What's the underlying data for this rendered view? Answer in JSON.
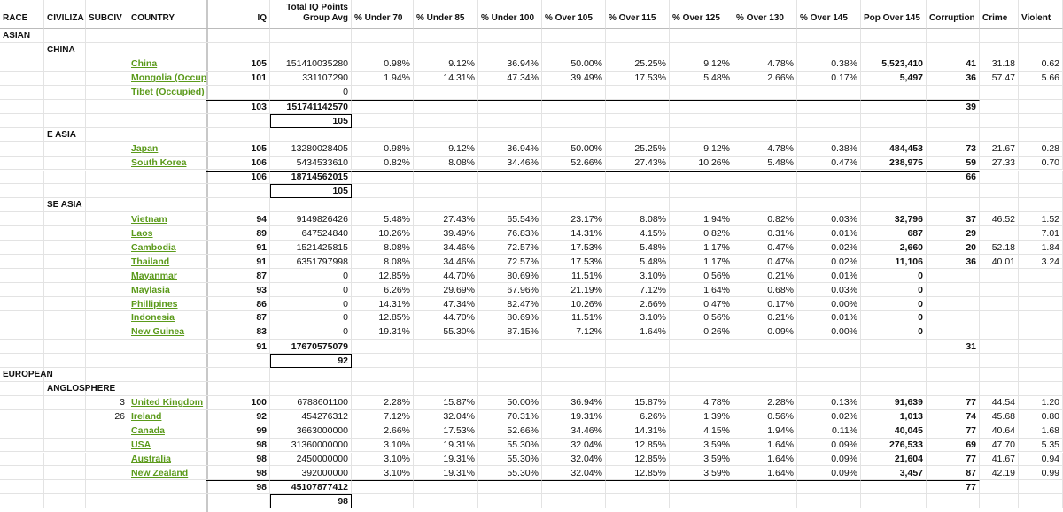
{
  "table": {
    "header": [
      "RACE",
      "CIVILIZA",
      "SUBCIV",
      "COUNTRY",
      "IQ",
      "Total IQ Points Group Avg",
      "% Under 70",
      "% Under 85",
      "% Under 100",
      "% Over 105",
      "% Over 115",
      "% Over 125",
      "% Over 130",
      "% Over 145",
      "Pop Over 145",
      "Corruption",
      "Crime",
      "Violent"
    ],
    "rows": [
      [
        "ASIAN",
        null,
        null,
        null,
        null,
        null,
        null,
        null,
        null,
        null,
        null,
        null,
        null,
        null,
        null,
        null,
        null,
        null
      ],
      [
        null,
        "CHINA",
        null,
        null,
        null,
        null,
        null,
        null,
        null,
        null,
        null,
        null,
        null,
        null,
        null,
        null,
        null,
        null
      ],
      [
        null,
        null,
        null,
        "China",
        "105",
        "151410035280",
        "0.98%",
        "9.12%",
        "36.94%",
        "50.00%",
        "25.25%",
        "9.12%",
        "4.78%",
        "0.38%",
        "5,523,410",
        "41",
        "31.18",
        "0.62"
      ],
      [
        null,
        null,
        null,
        "Mongolia (Occup",
        "101",
        "331107290",
        "1.94%",
        "14.31%",
        "47.34%",
        "39.49%",
        "17.53%",
        "5.48%",
        "2.66%",
        "0.17%",
        "5,497",
        "36",
        "57.47",
        "5.66"
      ],
      [
        null,
        null,
        null,
        "Tibet (Occupied)",
        null,
        "0",
        null,
        null,
        null,
        null,
        null,
        null,
        null,
        null,
        null,
        null,
        null,
        null
      ],
      [
        null,
        null,
        null,
        null,
        "103",
        "151741142570",
        null,
        null,
        null,
        null,
        null,
        null,
        null,
        null,
        null,
        "39",
        null,
        null
      ],
      [
        null,
        null,
        null,
        null,
        null,
        "105",
        null,
        null,
        null,
        null,
        null,
        null,
        null,
        null,
        null,
        null,
        null,
        null
      ],
      [
        null,
        "E ASIA",
        null,
        null,
        null,
        null,
        null,
        null,
        null,
        null,
        null,
        null,
        null,
        null,
        null,
        null,
        null,
        null
      ],
      [
        null,
        null,
        null,
        "Japan",
        "105",
        "13280028405",
        "0.98%",
        "9.12%",
        "36.94%",
        "50.00%",
        "25.25%",
        "9.12%",
        "4.78%",
        "0.38%",
        "484,453",
        "73",
        "21.67",
        "0.28"
      ],
      [
        null,
        null,
        null,
        "South Korea",
        "106",
        "5434533610",
        "0.82%",
        "8.08%",
        "34.46%",
        "52.66%",
        "27.43%",
        "10.26%",
        "5.48%",
        "0.47%",
        "238,975",
        "59",
        "27.33",
        "0.70"
      ],
      [
        null,
        null,
        null,
        null,
        "106",
        "18714562015",
        null,
        null,
        null,
        null,
        null,
        null,
        null,
        null,
        null,
        "66",
        null,
        null
      ],
      [
        null,
        null,
        null,
        null,
        null,
        "105",
        null,
        null,
        null,
        null,
        null,
        null,
        null,
        null,
        null,
        null,
        null,
        null
      ],
      [
        null,
        "SE ASIA",
        null,
        null,
        null,
        null,
        null,
        null,
        null,
        null,
        null,
        null,
        null,
        null,
        null,
        null,
        null,
        null
      ],
      [
        null,
        null,
        null,
        "Vietnam",
        "94",
        "9149826426",
        "5.48%",
        "27.43%",
        "65.54%",
        "23.17%",
        "8.08%",
        "1.94%",
        "0.82%",
        "0.03%",
        "32,796",
        "37",
        "46.52",
        "1.52"
      ],
      [
        null,
        null,
        null,
        "Laos",
        "89",
        "647524840",
        "10.26%",
        "39.49%",
        "76.83%",
        "14.31%",
        "4.15%",
        "0.82%",
        "0.31%",
        "0.01%",
        "687",
        "29",
        null,
        "7.01"
      ],
      [
        null,
        null,
        null,
        "Cambodia",
        "91",
        "1521425815",
        "8.08%",
        "34.46%",
        "72.57%",
        "17.53%",
        "5.48%",
        "1.17%",
        "0.47%",
        "0.02%",
        "2,660",
        "20",
        "52.18",
        "1.84"
      ],
      [
        null,
        null,
        null,
        "Thailand",
        "91",
        "6351797998",
        "8.08%",
        "34.46%",
        "72.57%",
        "17.53%",
        "5.48%",
        "1.17%",
        "0.47%",
        "0.02%",
        "11,106",
        "36",
        "40.01",
        "3.24"
      ],
      [
        null,
        null,
        null,
        "Mayanmar",
        "87",
        "0",
        "12.85%",
        "44.70%",
        "80.69%",
        "11.51%",
        "3.10%",
        "0.56%",
        "0.21%",
        "0.01%",
        "0",
        null,
        null,
        null
      ],
      [
        null,
        null,
        null,
        "Maylasia",
        "93",
        "0",
        "6.26%",
        "29.69%",
        "67.96%",
        "21.19%",
        "7.12%",
        "1.64%",
        "0.68%",
        "0.03%",
        "0",
        null,
        null,
        null
      ],
      [
        null,
        null,
        null,
        "Phillipines",
        "86",
        "0",
        "14.31%",
        "47.34%",
        "82.47%",
        "10.26%",
        "2.66%",
        "0.47%",
        "0.17%",
        "0.00%",
        "0",
        null,
        null,
        null
      ],
      [
        null,
        null,
        null,
        "Indonesia",
        "87",
        "0",
        "12.85%",
        "44.70%",
        "80.69%",
        "11.51%",
        "3.10%",
        "0.56%",
        "0.21%",
        "0.01%",
        "0",
        null,
        null,
        null
      ],
      [
        null,
        null,
        null,
        "New Guinea",
        "83",
        "0",
        "19.31%",
        "55.30%",
        "87.15%",
        "7.12%",
        "1.64%",
        "0.26%",
        "0.09%",
        "0.00%",
        "0",
        null,
        null,
        null
      ],
      [
        null,
        null,
        null,
        null,
        "91",
        "17670575079",
        null,
        null,
        null,
        null,
        null,
        null,
        null,
        null,
        null,
        "31",
        null,
        null
      ],
      [
        null,
        null,
        null,
        null,
        null,
        "92",
        null,
        null,
        null,
        null,
        null,
        null,
        null,
        null,
        null,
        null,
        null,
        null
      ],
      [
        "EUROPEAN",
        null,
        null,
        null,
        null,
        null,
        null,
        null,
        null,
        null,
        null,
        null,
        null,
        null,
        null,
        null,
        null,
        null
      ],
      [
        null,
        "ANGLOSPHERE",
        null,
        null,
        null,
        null,
        null,
        null,
        null,
        null,
        null,
        null,
        null,
        null,
        null,
        null,
        null,
        null
      ],
      [
        null,
        null,
        "3",
        "United Kingdom",
        "100",
        "6788601100",
        "2.28%",
        "15.87%",
        "50.00%",
        "36.94%",
        "15.87%",
        "4.78%",
        "2.28%",
        "0.13%",
        "91,639",
        "77",
        "44.54",
        "1.20"
      ],
      [
        null,
        null,
        "26",
        "Ireland",
        "92",
        "454276312",
        "7.12%",
        "32.04%",
        "70.31%",
        "19.31%",
        "6.26%",
        "1.39%",
        "0.56%",
        "0.02%",
        "1,013",
        "74",
        "45.68",
        "0.80"
      ],
      [
        null,
        null,
        null,
        "Canada",
        "99",
        "3663000000",
        "2.66%",
        "17.53%",
        "52.66%",
        "34.46%",
        "14.31%",
        "4.15%",
        "1.94%",
        "0.11%",
        "40,045",
        "77",
        "40.64",
        "1.68"
      ],
      [
        null,
        null,
        null,
        "USA",
        "98",
        "31360000000",
        "3.10%",
        "19.31%",
        "55.30%",
        "32.04%",
        "12.85%",
        "3.59%",
        "1.64%",
        "0.09%",
        "276,533",
        "69",
        "47.70",
        "5.35"
      ],
      [
        null,
        null,
        null,
        "Australia",
        "98",
        "2450000000",
        "3.10%",
        "19.31%",
        "55.30%",
        "32.04%",
        "12.85%",
        "3.59%",
        "1.64%",
        "0.09%",
        "21,604",
        "77",
        "41.67",
        "0.94"
      ],
      [
        null,
        null,
        null,
        "New Zealand",
        "98",
        "392000000",
        "3.10%",
        "19.31%",
        "55.30%",
        "32.04%",
        "12.85%",
        "3.59%",
        "1.64%",
        "0.09%",
        "3,457",
        "87",
        "42.19",
        "0.99"
      ],
      [
        null,
        null,
        null,
        null,
        "98",
        "45107877412",
        null,
        null,
        null,
        null,
        null,
        null,
        null,
        null,
        null,
        "77",
        null,
        null
      ],
      [
        null,
        null,
        null,
        null,
        null,
        "98",
        null,
        null,
        null,
        null,
        null,
        null,
        null,
        null,
        null,
        null,
        null,
        null
      ]
    ]
  }
}
